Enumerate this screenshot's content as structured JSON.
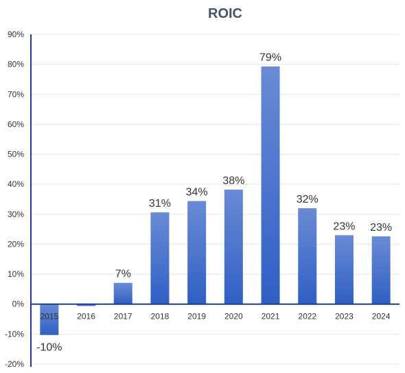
{
  "chart_data": {
    "type": "bar",
    "title": "ROIC",
    "xlabel": "",
    "ylabel": "",
    "categories": [
      "2015",
      "2016",
      "2017",
      "2018",
      "2019",
      "2020",
      "2021",
      "2022",
      "2023",
      "2024"
    ],
    "values": [
      -10.3,
      -0.6,
      7.1,
      30.6,
      34.4,
      38.2,
      79.3,
      32.0,
      23.0,
      22.6
    ],
    "data_labels": [
      "-10%",
      "",
      "7%",
      "31%",
      "34%",
      "38%",
      "79%",
      "32%",
      "23%",
      "23%"
    ],
    "ylim": [
      -20,
      90
    ],
    "yticks": [
      -20,
      -10,
      0,
      10,
      20,
      30,
      40,
      50,
      60,
      70,
      80,
      90
    ],
    "ytick_labels": [
      "-20%",
      "-10%",
      "0%",
      "10%",
      "20%",
      "30%",
      "40%",
      "50%",
      "60%",
      "70%",
      "80%",
      "90%"
    ],
    "grid": true,
    "legend": "none",
    "colors": {
      "bar_top": "#6a8bd4",
      "bar_bottom": "#2f5fc4",
      "axis": "#1f3c88",
      "title": "#44546a"
    }
  }
}
